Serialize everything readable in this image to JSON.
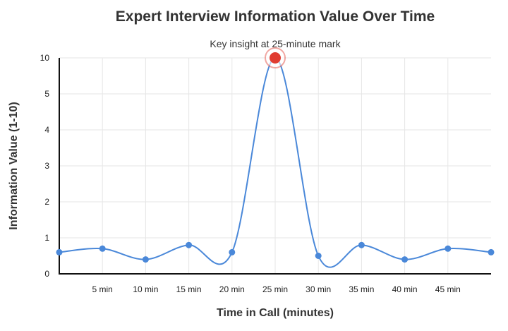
{
  "chart_data": {
    "type": "line",
    "title": "Expert Interview Information Value Over Time",
    "annotation": "Key insight at 25-minute mark",
    "xlabel": "Time in Call (minutes)",
    "ylabel": "Information Value (1-10)",
    "x_tick_labels": [
      "5 min",
      "10 min",
      "15 min",
      "20 min",
      "25 min",
      "30 min",
      "35 min",
      "40 min",
      "45 min"
    ],
    "x_ticks": [
      5,
      10,
      15,
      20,
      25,
      30,
      35,
      40,
      45
    ],
    "y_tick_labels": [
      "0",
      "1",
      "2",
      "3",
      "4",
      "5",
      "10"
    ],
    "xlim": [
      0,
      50
    ],
    "grid": true,
    "line_color": "#4a88d9",
    "highlight_color": "#e03c31",
    "series": [
      {
        "points": [
          {
            "x": 0,
            "y": 0.6
          },
          {
            "x": 5,
            "y": 0.7
          },
          {
            "x": 10,
            "y": 0.4
          },
          {
            "x": 15,
            "y": 0.8
          },
          {
            "x": 20,
            "y": 0.6
          },
          {
            "x": 25,
            "y": 10,
            "highlight": true
          },
          {
            "x": 30,
            "y": 0.5
          },
          {
            "x": 35,
            "y": 0.8
          },
          {
            "x": 40,
            "y": 0.4
          },
          {
            "x": 45,
            "y": 0.7
          },
          {
            "x": 50,
            "y": 0.6
          }
        ]
      }
    ]
  }
}
